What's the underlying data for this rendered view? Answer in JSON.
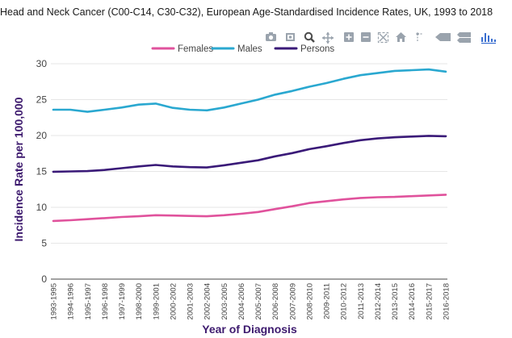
{
  "chart_data": {
    "type": "line",
    "title": "Head and Neck Cancer (C00-C14, C30-C32), European Age-Standardised Incidence Rates, UK, 1993 to 2018",
    "xlabel": "Year of Diagnosis",
    "ylabel": "Incidence Rate per 100,000",
    "ylim": [
      0,
      30
    ],
    "yticks": [
      "0",
      "5",
      "10",
      "15",
      "20",
      "25",
      "30"
    ],
    "grid": true,
    "legend_position": "top",
    "categories": [
      "1993-1995",
      "1994-1996",
      "1995-1997",
      "1996-1998",
      "1997-1999",
      "1998-2000",
      "1999-2001",
      "2000-2002",
      "2001-2003",
      "2002-2004",
      "2003-2005",
      "2004-2006",
      "2005-2007",
      "2006-2008",
      "2007-2009",
      "2008-2010",
      "2009-2011",
      "2010-2012",
      "2011-2013",
      "2012-2014",
      "2013-2015",
      "2014-2016",
      "2015-2017",
      "2016-2018"
    ],
    "series": [
      {
        "name": "Females",
        "color": "#e0529c",
        "values": [
          8.1,
          8.2,
          8.35,
          8.5,
          8.65,
          8.75,
          8.9,
          8.85,
          8.8,
          8.75,
          8.9,
          9.1,
          9.35,
          9.75,
          10.15,
          10.6,
          10.85,
          11.1,
          11.3,
          11.4,
          11.45,
          11.55,
          11.65,
          11.75
        ]
      },
      {
        "name": "Males",
        "color": "#2aa8d0",
        "values": [
          23.6,
          23.6,
          23.3,
          23.6,
          23.9,
          24.3,
          24.45,
          23.85,
          23.6,
          23.5,
          23.9,
          24.45,
          25,
          25.7,
          26.2,
          26.8,
          27.3,
          27.9,
          28.4,
          28.7,
          29,
          29.1,
          29.2,
          28.9
        ]
      },
      {
        "name": "Persons",
        "color": "#3a1a78",
        "values": [
          14.95,
          15,
          15.05,
          15.2,
          15.45,
          15.7,
          15.9,
          15.7,
          15.6,
          15.55,
          15.85,
          16.2,
          16.55,
          17.1,
          17.55,
          18.1,
          18.5,
          18.95,
          19.35,
          19.6,
          19.75,
          19.85,
          19.95,
          19.9
        ]
      }
    ]
  },
  "toolbar": {
    "icons": [
      "camera-icon",
      "zoom-icon",
      "pan-icon",
      "zoom-in-icon",
      "zoom-out-icon",
      "autoscale-icon",
      "reset-axes-icon",
      "spike-lines-icon",
      "hover-closest-icon",
      "hover-compare-icon",
      "plotly-logo-icon"
    ]
  }
}
